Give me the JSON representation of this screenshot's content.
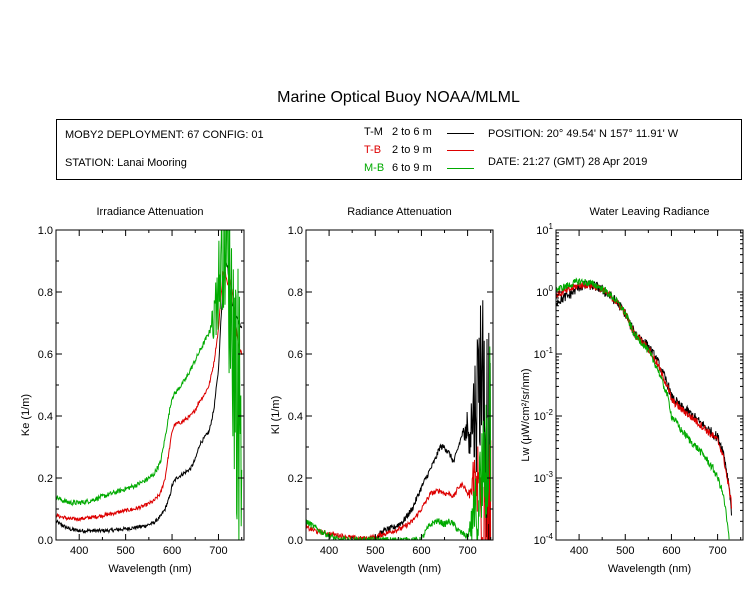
{
  "title": "Marine Optical Buoy NOAA/MLML",
  "info": {
    "deployment": "MOBY2 DEPLOYMENT: 67 CONFIG: 01",
    "station": "STATION: Lanai Mooring",
    "position": "POSITION: 20° 49.54' N   157° 11.91' W",
    "date": "DATE: 21:27 (GMT) 28 Apr 2019"
  },
  "legend": [
    {
      "code": "T-M",
      "range": "2 to 6  m",
      "color": "#000000"
    },
    {
      "code": "T-B",
      "range": "2 to 9  m",
      "color": "#dd0000"
    },
    {
      "code": "M-B",
      "range": "6 to 9  m",
      "color": "#00aa00"
    }
  ],
  "chart_data": [
    {
      "type": "line",
      "title": "Irradiance Attenuation",
      "xlabel": "Wavelength (nm)",
      "ylabel": "Ke  (1/m)",
      "xlim": [
        350,
        755
      ],
      "ylim": [
        0,
        1
      ],
      "yscale": "linear",
      "xticks": [
        400,
        500,
        600,
        700
      ],
      "yticks": [
        0.0,
        0.2,
        0.4,
        0.6,
        0.8,
        1.0
      ],
      "ytick_labels": [
        "0.0",
        "0.2",
        "0.4",
        "0.6",
        "0.8",
        "1.0"
      ],
      "series": [
        {
          "name": "T-M",
          "color": "#000000",
          "noise": 0.006,
          "x": [
            350,
            360,
            380,
            400,
            420,
            440,
            460,
            480,
            500,
            520,
            540,
            560,
            575,
            585,
            595,
            600,
            605,
            610,
            620,
            630,
            640,
            650,
            660,
            670,
            680,
            690,
            700,
            705,
            710,
            715,
            720,
            725,
            730,
            735,
            740,
            745,
            750
          ],
          "y": [
            0.06,
            0.05,
            0.035,
            0.03,
            0.03,
            0.03,
            0.03,
            0.033,
            0.036,
            0.04,
            0.045,
            0.055,
            0.075,
            0.1,
            0.14,
            0.175,
            0.19,
            0.2,
            0.21,
            0.22,
            0.23,
            0.26,
            0.31,
            0.33,
            0.35,
            0.42,
            0.55,
            0.7,
            0.82,
            0.9,
            0.88,
            0.8,
            0.76,
            0.74,
            0.72,
            0.7,
            0.68
          ]
        },
        {
          "name": "T-B",
          "color": "#dd0000",
          "noise": 0.006,
          "x": [
            350,
            360,
            380,
            400,
            420,
            440,
            460,
            480,
            500,
            520,
            540,
            560,
            575,
            585,
            595,
            600,
            605,
            610,
            620,
            630,
            640,
            650,
            660,
            670,
            680,
            690,
            700,
            705,
            710,
            715,
            720,
            725,
            730,
            735,
            740,
            745,
            750
          ],
          "y": [
            0.08,
            0.075,
            0.068,
            0.068,
            0.072,
            0.076,
            0.082,
            0.088,
            0.095,
            0.1,
            0.11,
            0.125,
            0.15,
            0.2,
            0.3,
            0.35,
            0.37,
            0.375,
            0.38,
            0.39,
            0.4,
            0.42,
            0.45,
            0.47,
            0.5,
            0.57,
            0.68,
            0.78,
            0.86,
            0.86,
            0.82,
            0.84,
            0.8,
            0.72,
            0.66,
            0.62,
            0.6
          ]
        },
        {
          "name": "M-B",
          "color": "#00aa00",
          "noise": 0.008,
          "spikes": 680,
          "x": [
            350,
            360,
            380,
            400,
            420,
            440,
            460,
            480,
            500,
            520,
            540,
            560,
            575,
            585,
            595,
            600,
            605,
            610,
            620,
            630,
            640,
            650,
            660,
            670,
            680,
            690,
            700,
            705,
            710,
            715,
            720,
            725,
            730,
            735,
            740,
            745,
            750
          ],
          "y": [
            0.14,
            0.13,
            0.12,
            0.12,
            0.125,
            0.135,
            0.145,
            0.155,
            0.165,
            0.175,
            0.19,
            0.21,
            0.25,
            0.33,
            0.42,
            0.46,
            0.47,
            0.48,
            0.5,
            0.52,
            0.55,
            0.58,
            0.61,
            0.64,
            0.67,
            0.72,
            0.82,
            0.9,
            0.97,
            0.98,
            0.9,
            0.8,
            0.7,
            0.6,
            0.5,
            0.42,
            0.38
          ]
        }
      ]
    },
    {
      "type": "line",
      "title": "Radiance Attenuation",
      "xlabel": "Wavelength (nm)",
      "ylabel": "Kl  (1/m)",
      "xlim": [
        350,
        755
      ],
      "ylim": [
        0,
        1
      ],
      "yscale": "linear",
      "xticks": [
        400,
        500,
        600,
        700
      ],
      "yticks": [
        0.0,
        0.2,
        0.4,
        0.6,
        0.8,
        1.0
      ],
      "ytick_labels": [
        "0.0",
        "0.2",
        "0.4",
        "0.6",
        "0.8",
        "1.0"
      ],
      "series": [
        {
          "name": "T-M",
          "color": "#000000",
          "noise": 0.01,
          "spikes": 690,
          "x": [
            500,
            510,
            520,
            540,
            560,
            580,
            600,
            620,
            630,
            640,
            650,
            660,
            670,
            680,
            690,
            700,
            710,
            720,
            730,
            740,
            750
          ],
          "y": [
            0.0,
            0.02,
            0.03,
            0.04,
            0.06,
            0.1,
            0.17,
            0.23,
            0.26,
            0.3,
            0.3,
            0.28,
            0.25,
            0.3,
            0.35,
            0.36,
            0.38,
            0.45,
            0.6,
            0.4,
            0.2
          ]
        },
        {
          "name": "T-B",
          "color": "#dd0000",
          "noise": 0.008,
          "spikes": 700,
          "x": [
            350,
            360,
            380,
            400,
            420,
            440,
            460,
            480,
            500,
            520,
            540,
            560,
            580,
            600,
            620,
            640,
            650,
            660,
            670,
            680,
            690,
            700,
            710,
            720,
            730,
            740,
            750
          ],
          "y": [
            0.04,
            0.035,
            0.025,
            0.02,
            0.015,
            0.01,
            0.005,
            0.005,
            0.01,
            0.02,
            0.03,
            0.04,
            0.06,
            0.1,
            0.15,
            0.16,
            0.15,
            0.15,
            0.14,
            0.17,
            0.18,
            0.15,
            0.16,
            0.18,
            0.15,
            0.1,
            0.05
          ]
        },
        {
          "name": "M-B",
          "color": "#00aa00",
          "noise": 0.01,
          "spikes": 700,
          "x": [
            350,
            360,
            380,
            400,
            420,
            600,
            610,
            620,
            630,
            640,
            650,
            660,
            670,
            680,
            690,
            700,
            710,
            720,
            730,
            740,
            750
          ],
          "y": [
            0.06,
            0.05,
            0.03,
            0.015,
            0.0,
            0.0,
            0.03,
            0.05,
            0.06,
            0.06,
            0.05,
            0.06,
            0.05,
            0.03,
            0.02,
            0.01,
            0.05,
            0.1,
            0.15,
            0.3,
            0.45
          ]
        }
      ]
    },
    {
      "type": "line",
      "title": "Water Leaving Radiance",
      "xlabel": "Wavelength (nm)",
      "ylabel": "Lw  (μW/cm²/sr/nm)",
      "xlim": [
        350,
        755
      ],
      "ylim": [
        0.0001,
        10
      ],
      "yscale": "log",
      "xticks": [
        400,
        500,
        600,
        700
      ],
      "yticks": [
        0.0001,
        0.001,
        0.01,
        0.1,
        1,
        10
      ],
      "ytick_labels": [
        {
          "base": "10",
          "exp": "-4"
        },
        {
          "base": "10",
          "exp": "-3"
        },
        {
          "base": "10",
          "exp": "-2"
        },
        {
          "base": "10",
          "exp": "-1"
        },
        {
          "base": "10",
          "exp": "0"
        },
        {
          "base": "10",
          "exp": "1"
        }
      ],
      "series": [
        {
          "name": "T-M",
          "color": "#000000",
          "noise": 0.08,
          "x": [
            350,
            360,
            380,
            400,
            420,
            440,
            460,
            480,
            500,
            510,
            520,
            540,
            560,
            580,
            600,
            620,
            640,
            660,
            680,
            700,
            710,
            720,
            730
          ],
          "y": [
            0.7,
            0.75,
            0.9,
            1.2,
            1.3,
            1.2,
            0.95,
            0.7,
            0.45,
            0.3,
            0.22,
            0.16,
            0.1,
            0.05,
            0.02,
            0.014,
            0.011,
            0.008,
            0.006,
            0.0045,
            0.003,
            0.0012,
            0.00025
          ]
        },
        {
          "name": "T-B",
          "color": "#dd0000",
          "noise": 0.06,
          "x": [
            350,
            360,
            380,
            400,
            420,
            440,
            460,
            480,
            500,
            510,
            520,
            540,
            560,
            580,
            600,
            620,
            640,
            660,
            680,
            700,
            710,
            720,
            730
          ],
          "y": [
            0.9,
            0.95,
            1.1,
            1.3,
            1.3,
            1.2,
            0.95,
            0.7,
            0.45,
            0.3,
            0.21,
            0.15,
            0.09,
            0.045,
            0.018,
            0.013,
            0.01,
            0.0075,
            0.0055,
            0.004,
            0.0025,
            0.001,
            0.00035
          ]
        },
        {
          "name": "M-B",
          "color": "#00aa00",
          "noise": 0.06,
          "x": [
            350,
            360,
            380,
            400,
            420,
            440,
            460,
            480,
            500,
            510,
            520,
            540,
            560,
            580,
            600,
            620,
            640,
            660,
            680,
            700,
            710,
            720,
            725
          ],
          "y": [
            1.1,
            1.15,
            1.3,
            1.5,
            1.4,
            1.25,
            1.0,
            0.72,
            0.45,
            0.3,
            0.2,
            0.14,
            0.08,
            0.035,
            0.01,
            0.006,
            0.004,
            0.0028,
            0.0018,
            0.001,
            0.0006,
            0.0002,
            0.0001
          ]
        }
      ]
    }
  ]
}
